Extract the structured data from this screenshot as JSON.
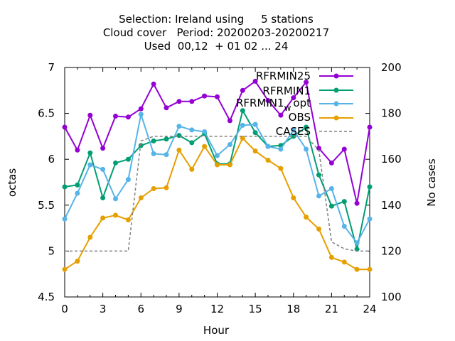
{
  "title_lines": [
    "Selection: Ireland using     5 stations",
    "Cloud cover   Period: 20200203-20200217",
    "Used  00,12  + 01 02 ... 24"
  ],
  "colors": {
    "RFRMIN25": "#9400d3",
    "RFRMIN1": "#009e73",
    "RFRMIN1_wopt": "#56b4e9",
    "OBS": "#e69f00",
    "CASES": "#808080"
  },
  "chart_data": {
    "type": "line",
    "xlabel": "Hour",
    "ylabel": "octas",
    "y2label": "No cases",
    "xlim": [
      0,
      24
    ],
    "ylim": [
      4.5,
      7
    ],
    "y2lim": [
      100,
      200
    ],
    "xticks": [
      0,
      3,
      6,
      9,
      12,
      15,
      18,
      21,
      24
    ],
    "yticks": [
      4.5,
      5,
      5.5,
      6,
      6.5,
      7
    ],
    "yticklabels": [
      "4.5",
      "5",
      "5.5",
      "6",
      "6.5",
      "7"
    ],
    "y2ticks": [
      100,
      120,
      140,
      160,
      180,
      200
    ],
    "x": [
      0,
      1,
      2,
      3,
      4,
      5,
      6,
      7,
      8,
      9,
      10,
      11,
      12,
      13,
      14,
      15,
      16,
      17,
      18,
      19,
      20,
      21,
      22,
      23,
      24
    ],
    "series": [
      {
        "key": "RFRMIN25",
        "name": "RFRMIN25",
        "axis": "y1",
        "marker": true,
        "values": [
          6.35,
          6.1,
          6.48,
          6.12,
          6.47,
          6.46,
          6.55,
          6.82,
          6.56,
          6.63,
          6.63,
          6.69,
          6.68,
          6.42,
          6.75,
          6.85,
          6.64,
          6.48,
          6.67,
          6.84,
          6.12,
          5.96,
          6.11,
          5.52,
          6.35
        ]
      },
      {
        "key": "RFRMIN1",
        "name": "RFRMIN1",
        "axis": "y1",
        "marker": true,
        "values": [
          5.7,
          5.72,
          6.07,
          5.58,
          5.96,
          6.0,
          6.15,
          6.2,
          6.22,
          6.26,
          6.18,
          6.28,
          5.95,
          5.95,
          6.53,
          6.29,
          6.14,
          6.15,
          6.25,
          6.35,
          5.83,
          5.49,
          5.54,
          5.02,
          5.7
        ]
      },
      {
        "key": "RFRMIN1_wopt",
        "name_main": "RFRMIN1",
        "name_sub": "w",
        "name_tail": "opt",
        "axis": "y1",
        "marker": true,
        "values": [
          5.35,
          5.63,
          5.94,
          5.89,
          5.57,
          5.78,
          6.49,
          6.06,
          6.05,
          6.36,
          6.32,
          6.3,
          6.04,
          6.16,
          6.37,
          6.38,
          6.14,
          6.11,
          6.32,
          6.11,
          5.6,
          5.68,
          5.27,
          5.09,
          5.35
        ]
      },
      {
        "key": "OBS",
        "name": "OBS",
        "axis": "y1",
        "marker": true,
        "values": [
          4.8,
          4.89,
          5.15,
          5.36,
          5.39,
          5.34,
          5.58,
          5.68,
          5.69,
          6.1,
          5.89,
          6.14,
          5.94,
          5.94,
          6.23,
          6.09,
          5.99,
          5.9,
          5.58,
          5.37,
          5.24,
          4.93,
          4.88,
          4.8,
          4.8
        ]
      },
      {
        "key": "CASES",
        "name": "CASES",
        "axis": "y2",
        "marker": false,
        "dashed": true,
        "values": [
          120,
          120,
          120,
          120,
          120,
          120,
          168,
          170,
          170,
          170,
          170,
          170,
          170,
          170,
          170,
          170,
          170,
          170,
          170,
          170,
          164,
          124,
          121,
          120,
          120
        ]
      }
    ]
  }
}
